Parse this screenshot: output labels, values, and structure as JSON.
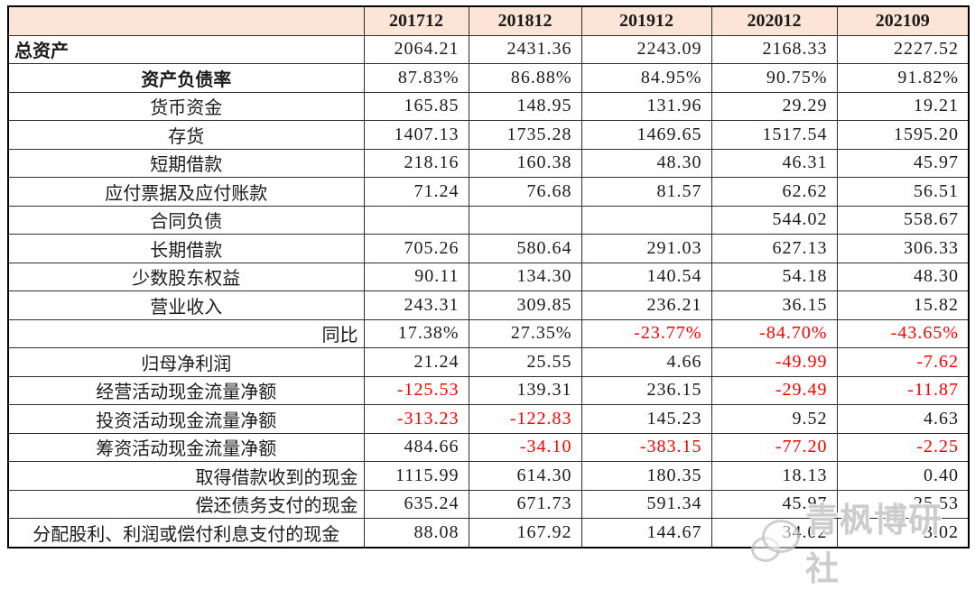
{
  "colors": {
    "header_bg": "#fce4d6",
    "negative": "#fe0000",
    "text": "#1b1b1b",
    "border": "#000000",
    "grid": "#2e2e2e",
    "watermark": "#a8a8a8"
  },
  "table": {
    "header": {
      "corner_label": "",
      "columns": [
        "201712",
        "201812",
        "201912",
        "202012",
        "202109"
      ]
    },
    "rows": [
      {
        "label": "总资产",
        "align": "left",
        "bold": true,
        "values": [
          "2064.21",
          "2431.36",
          "2243.09",
          "2168.33",
          "2227.52"
        ]
      },
      {
        "label": "资产负债率",
        "align": "center",
        "bold": true,
        "values": [
          "87.83%",
          "86.88%",
          "84.95%",
          "90.75%",
          "91.82%"
        ]
      },
      {
        "label": "货币资金",
        "align": "center",
        "bold": false,
        "values": [
          "165.85",
          "148.95",
          "131.96",
          "29.29",
          "19.21"
        ]
      },
      {
        "label": "存货",
        "align": "center",
        "bold": false,
        "values": [
          "1407.13",
          "1735.28",
          "1469.65",
          "1517.54",
          "1595.20"
        ]
      },
      {
        "label": "短期借款",
        "align": "center",
        "bold": false,
        "values": [
          "218.16",
          "160.38",
          "48.30",
          "46.31",
          "45.97"
        ]
      },
      {
        "label": "应付票据及应付账款",
        "align": "center",
        "bold": false,
        "values": [
          "71.24",
          "76.68",
          "81.57",
          "62.62",
          "56.51"
        ]
      },
      {
        "label": "合同负债",
        "align": "center",
        "bold": false,
        "values": [
          "",
          "",
          "",
          "544.02",
          "558.67"
        ]
      },
      {
        "label": "长期借款",
        "align": "center",
        "bold": false,
        "values": [
          "705.26",
          "580.64",
          "291.03",
          "627.13",
          "306.33"
        ]
      },
      {
        "label": "少数股东权益",
        "align": "center",
        "bold": false,
        "values": [
          "90.11",
          "134.30",
          "140.54",
          "54.18",
          "48.30"
        ]
      },
      {
        "label": "营业收入",
        "align": "center",
        "bold": false,
        "values": [
          "243.31",
          "309.85",
          "236.21",
          "36.15",
          "15.82"
        ]
      },
      {
        "label": "同比",
        "align": "right",
        "bold": false,
        "values": [
          "17.38%",
          "27.35%",
          "-23.77%",
          "-84.70%",
          "-43.65%"
        ]
      },
      {
        "label": "归母净利润",
        "align": "center",
        "bold": false,
        "values": [
          "21.24",
          "25.55",
          "4.66",
          "-49.99",
          "-7.62"
        ]
      },
      {
        "label": "经营活动现金流量净额",
        "align": "center",
        "bold": false,
        "values": [
          "-125.53",
          "139.31",
          "236.15",
          "-29.49",
          "-11.87"
        ]
      },
      {
        "label": "投资活动现金流量净额",
        "align": "center",
        "bold": false,
        "values": [
          "-313.23",
          "-122.83",
          "145.23",
          "9.52",
          "4.63"
        ]
      },
      {
        "label": "筹资活动现金流量净额",
        "align": "center",
        "bold": false,
        "values": [
          "484.66",
          "-34.10",
          "-383.15",
          "-77.20",
          "-2.25"
        ]
      },
      {
        "label": "取得借款收到的现金",
        "align": "right",
        "bold": false,
        "values": [
          "1115.99",
          "614.30",
          "180.35",
          "18.13",
          "0.40"
        ]
      },
      {
        "label": "偿还债务支付的现金",
        "align": "right",
        "bold": false,
        "values": [
          "635.24",
          "671.73",
          "591.34",
          "45.97",
          "25.53"
        ]
      },
      {
        "label": "分配股利、利润或偿付利息支付的现金",
        "align": "center",
        "bold": false,
        "values": [
          "88.08",
          "167.92",
          "144.67",
          "34.02",
          "3.02"
        ]
      }
    ]
  },
  "watermark": {
    "text": "青枫博研社",
    "logo": "chat-bubbles-icon"
  }
}
